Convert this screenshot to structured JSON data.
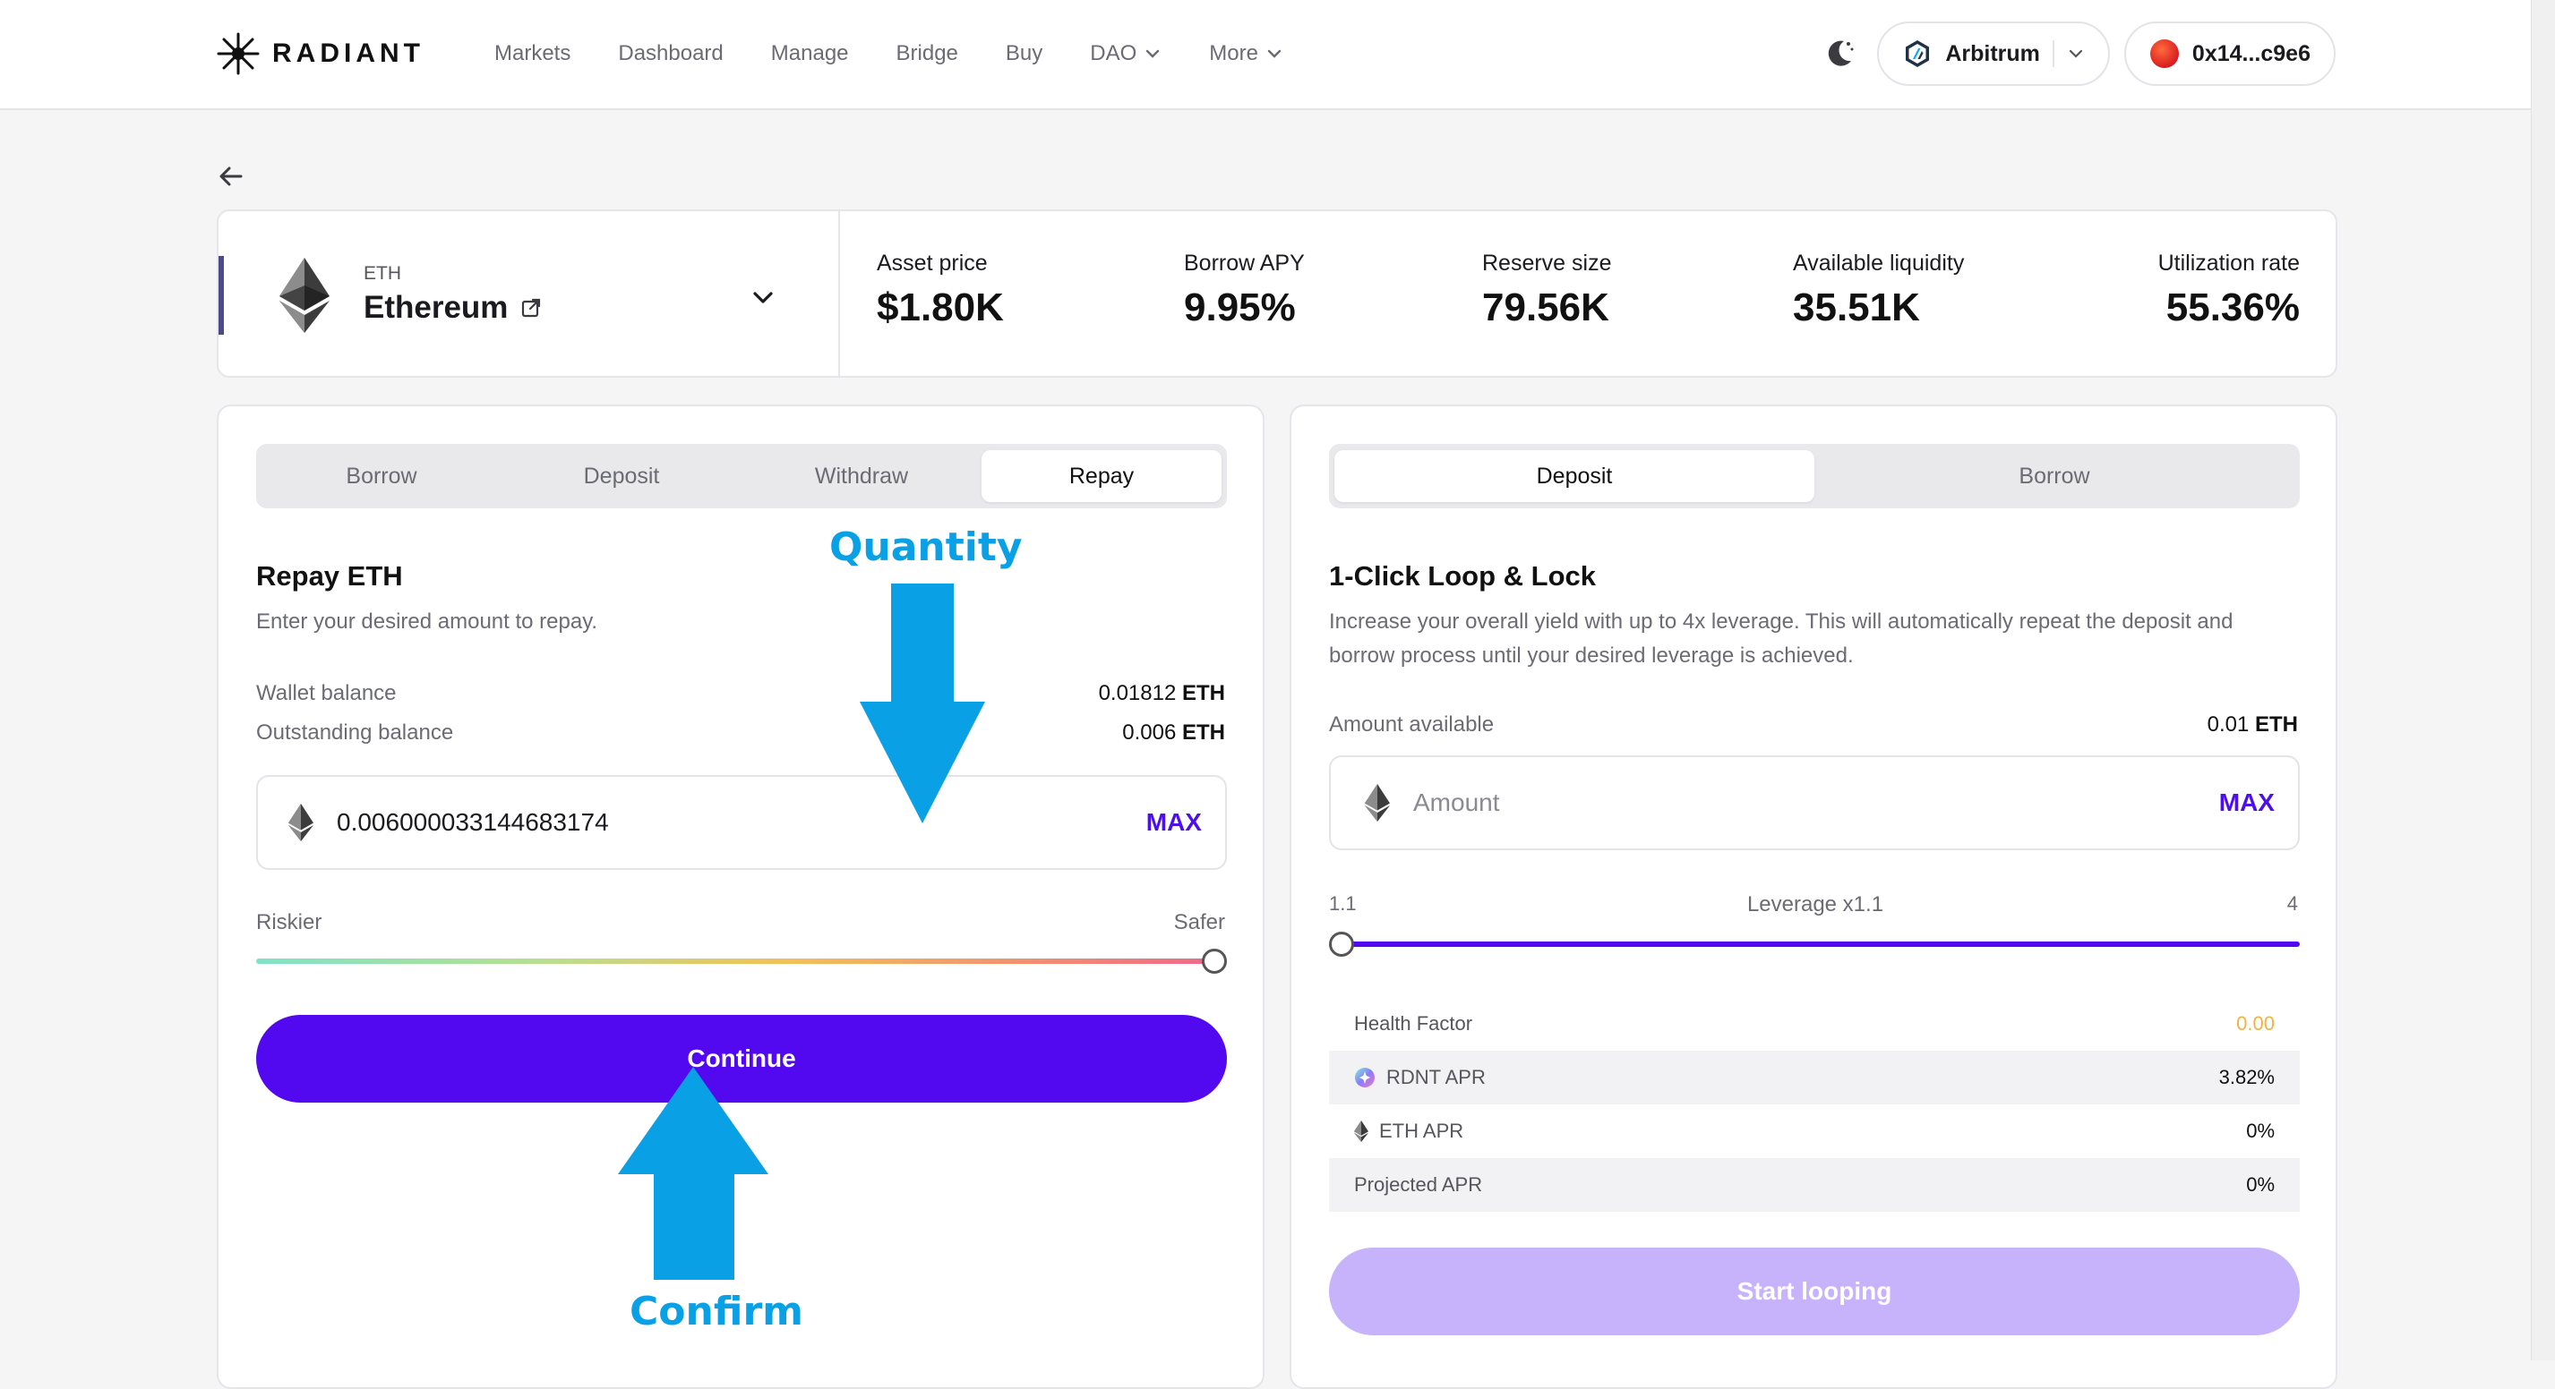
{
  "header": {
    "brand": "RADIANT",
    "nav": [
      {
        "label": "Markets",
        "has_chevron": false
      },
      {
        "label": "Dashboard",
        "has_chevron": false
      },
      {
        "label": "Manage",
        "has_chevron": false
      },
      {
        "label": "Bridge",
        "has_chevron": false
      },
      {
        "label": "Buy",
        "has_chevron": false
      },
      {
        "label": "DAO",
        "has_chevron": true
      },
      {
        "label": "More",
        "has_chevron": true
      }
    ],
    "network": "Arbitrum",
    "wallet": "0x14...c9e6"
  },
  "asset": {
    "symbol": "ETH",
    "name": "Ethereum",
    "stats": [
      {
        "label": "Asset price",
        "value": "$1.80K"
      },
      {
        "label": "Borrow APY",
        "value": "9.95%"
      },
      {
        "label": "Reserve size",
        "value": "79.56K"
      },
      {
        "label": "Available liquidity",
        "value": "35.51K"
      },
      {
        "label": "Utilization rate",
        "value": "55.36%"
      }
    ]
  },
  "left_panel": {
    "tabs": [
      "Borrow",
      "Deposit",
      "Withdraw",
      "Repay"
    ],
    "active_tab": "Repay",
    "title": "Repay ETH",
    "subtitle": "Enter your desired amount to repay.",
    "wallet_balance_label": "Wallet balance",
    "wallet_balance_value": "0.01812",
    "outstanding_label": "Outstanding balance",
    "outstanding_value": "0.006",
    "unit": "ETH",
    "amount_value": "0.006000033144683174",
    "max_label": "MAX",
    "risk_left": "Riskier",
    "risk_right": "Safer",
    "risk_position": 1.0,
    "continue_label": "Continue"
  },
  "right_panel": {
    "tabs": [
      "Deposit",
      "Borrow"
    ],
    "active_tab": "Deposit",
    "title": "1-Click Loop & Lock",
    "description": "Increase your overall yield with up to 4x leverage. This will automatically repeat the deposit and borrow process until your desired leverage is achieved.",
    "amount_available_label": "Amount available",
    "amount_available_value": "0.01",
    "unit": "ETH",
    "amount_placeholder": "Amount",
    "max_label": "MAX",
    "leverage_min": "1.1",
    "leverage_label": "Leverage x1.1",
    "leverage_max": "4",
    "leverage_value": 1.1,
    "rows": [
      {
        "label": "Health Factor",
        "value": "0.00",
        "icon": "",
        "value_color": "#f2b33d"
      },
      {
        "label": "RDNT APR",
        "value": "3.82%",
        "icon": "rdnt-icon",
        "value_color": "#111111"
      },
      {
        "label": "ETH APR",
        "value": "0%",
        "icon": "eth-icon",
        "value_color": "#111111"
      },
      {
        "label": "Projected APR",
        "value": "0%",
        "icon": "",
        "value_color": "#111111"
      }
    ],
    "start_label": "Start looping"
  },
  "annotations": {
    "quantity": "Quantity",
    "confirm": "Confirm",
    "color": "#0aa0e6"
  }
}
